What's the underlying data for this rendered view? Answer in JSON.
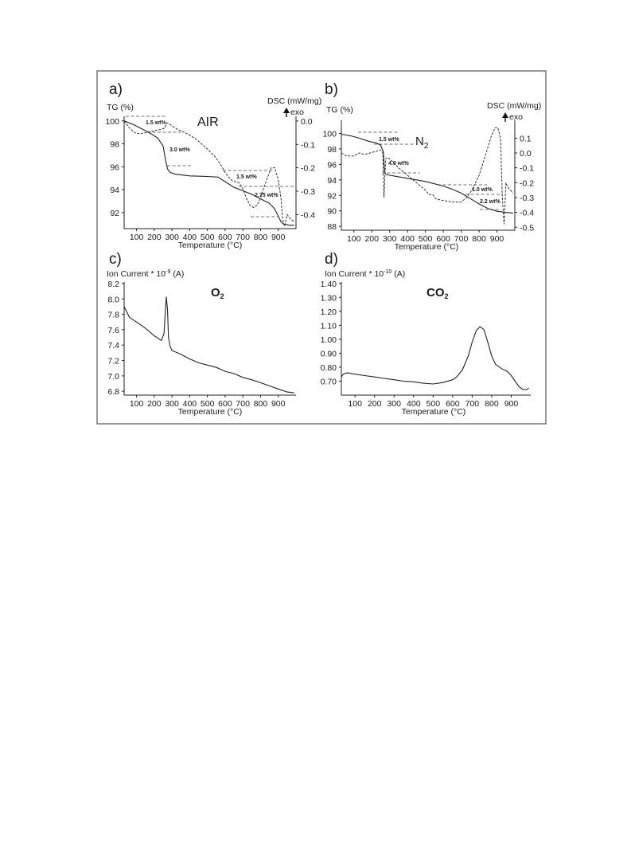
{
  "chart_data": [
    {
      "panel": "a)",
      "type": "line",
      "title": "AIR",
      "xlabel": "Temperature (°C)",
      "ylabel": "TG (%)",
      "y2label": "DSC (mW/mg)",
      "y2note": "exo",
      "xlim": [
        30,
        1000
      ],
      "ylim": [
        90.6,
        100.4
      ],
      "y2lim": [
        -0.46,
        0.02
      ],
      "x_ticks": [
        "100",
        "200",
        "300",
        "400",
        "500",
        "600",
        "700",
        "800",
        "900"
      ],
      "y_ticks": [
        "100",
        "98",
        "96",
        "94",
        "92"
      ],
      "y2_ticks": [
        "0.0",
        "-0.1",
        "-0.2",
        "-0.3",
        "-0.4"
      ],
      "annotations": [
        "1.5 wt%",
        "3.0 wt%",
        "1.5 wt%",
        "2.75 wt%"
      ],
      "series": [
        {
          "role": "TG",
          "style": "solid",
          "x": [
            30,
            80,
            130,
            180,
            220,
            250,
            265,
            275,
            290,
            320,
            400,
            500,
            560,
            600,
            650,
            700,
            750,
            800,
            850,
            880,
            900,
            915,
            930,
            960,
            990
          ],
          "y": [
            100.0,
            99.7,
            99.3,
            98.9,
            98.5,
            97.8,
            96.5,
            95.8,
            95.5,
            95.35,
            95.2,
            95.15,
            95.1,
            94.7,
            94.2,
            93.9,
            93.6,
            93.2,
            92.8,
            92.3,
            91.7,
            91.2,
            91.0,
            90.9,
            90.9
          ]
        },
        {
          "role": "DSC",
          "style": "dashed",
          "x": [
            30,
            60,
            90,
            120,
            150,
            180,
            210,
            240,
            260,
            270,
            280,
            300,
            330,
            360,
            400,
            440,
            470,
            500,
            540,
            570,
            600,
            620,
            640,
            660,
            680,
            700,
            720,
            740,
            760,
            780,
            800,
            820,
            840,
            860,
            880,
            900,
            915,
            925,
            935,
            950,
            970,
            990
          ],
          "y": [
            0.0,
            -0.03,
            -0.05,
            -0.055,
            -0.05,
            -0.045,
            -0.04,
            -0.035,
            -0.03,
            -0.01,
            -0.01,
            -0.02,
            -0.035,
            -0.045,
            -0.06,
            -0.08,
            -0.1,
            -0.12,
            -0.15,
            -0.18,
            -0.22,
            -0.24,
            -0.255,
            -0.26,
            -0.265,
            -0.29,
            -0.33,
            -0.36,
            -0.37,
            -0.36,
            -0.33,
            -0.28,
            -0.24,
            -0.2,
            -0.2,
            -0.25,
            -0.33,
            -0.42,
            -0.45,
            -0.4,
            -0.42,
            -0.43
          ]
        }
      ]
    },
    {
      "panel": "b)",
      "type": "line",
      "title": "N",
      "title_sub": "2",
      "xlabel": "Temperature (°C)",
      "ylabel": "TG (%)",
      "y2label": "DSC (mW/mg)",
      "y2note": "exo",
      "xlim": [
        30,
        1000
      ],
      "ylim": [
        87.5,
        101.7
      ],
      "y2lim": [
        -0.52,
        0.22
      ],
      "x_ticks": [
        "100",
        "200",
        "300",
        "400",
        "500",
        "600",
        "700",
        "800",
        "900"
      ],
      "y_ticks": [
        "100",
        "98",
        "96",
        "94",
        "92",
        "90",
        "88"
      ],
      "y2_ticks": [
        "0.1",
        "0.0",
        "-0.1",
        "-0.2",
        "-0.3",
        "-0.4",
        "-0.5"
      ],
      "annotations": [
        "1.5 wt%",
        "4.0 wt%",
        "1.0 wt%",
        "2.2 wt%"
      ],
      "series": [
        {
          "role": "TG",
          "style": "solid",
          "x": [
            30,
            80,
            130,
            180,
            220,
            250,
            265,
            272,
            280,
            300,
            350,
            400,
            450,
            500,
            550,
            600,
            650,
            700,
            750,
            800,
            850,
            900,
            950,
            990
          ],
          "y": [
            99.9,
            99.7,
            99.4,
            99.0,
            98.8,
            98.5,
            97.6,
            94.9,
            94.7,
            94.6,
            94.4,
            94.2,
            94.0,
            93.8,
            93.5,
            93.2,
            92.8,
            92.3,
            91.6,
            90.9,
            90.3,
            89.95,
            89.8,
            89.7
          ]
        },
        {
          "role": "DSC",
          "style": "dashed",
          "x": [
            30,
            60,
            100,
            130,
            160,
            190,
            220,
            250,
            262,
            268,
            272,
            278,
            290,
            310,
            350,
            400,
            450,
            500,
            520,
            540,
            560,
            600,
            650,
            700,
            730,
            760,
            800,
            840,
            870,
            890,
            905,
            920,
            930,
            940,
            945,
            950,
            960,
            975,
            990
          ],
          "y": [
            0.0,
            -0.02,
            -0.02,
            0.0,
            -0.01,
            0.0,
            0.01,
            0.02,
            0.0,
            -0.3,
            -0.2,
            -0.04,
            -0.03,
            -0.05,
            -0.1,
            -0.15,
            -0.2,
            -0.25,
            -0.28,
            -0.28,
            -0.31,
            -0.32,
            -0.33,
            -0.33,
            -0.3,
            -0.25,
            -0.15,
            0.0,
            0.12,
            0.17,
            0.17,
            0.1,
            -0.3,
            -0.48,
            -0.35,
            -0.2,
            -0.23,
            -0.25,
            -0.27
          ]
        }
      ]
    },
    {
      "panel": "c)",
      "type": "line",
      "title": "O",
      "title_sub": "2",
      "xlabel": "Temperature (°C)",
      "ylabel": "Ion Current * 10",
      "ylabel_sup": "-9",
      "ylabel_unit": "(A)",
      "xlim": [
        30,
        1000
      ],
      "ylim": [
        6.75,
        8.22
      ],
      "x_ticks": [
        "100",
        "200",
        "300",
        "400",
        "500",
        "600",
        "700",
        "800",
        "900"
      ],
      "y_ticks": [
        "8.2",
        "8.0",
        "7.8",
        "7.6",
        "7.4",
        "7.2",
        "7.0",
        "6.8"
      ],
      "series": [
        {
          "role": "O2",
          "style": "solid",
          "x": [
            30,
            60,
            100,
            150,
            200,
            240,
            255,
            262,
            268,
            275,
            280,
            290,
            300,
            350,
            400,
            450,
            500,
            550,
            600,
            650,
            700,
            750,
            800,
            850,
            900,
            950,
            990
          ],
          "y": [
            7.9,
            7.76,
            7.7,
            7.62,
            7.52,
            7.46,
            7.55,
            7.82,
            8.03,
            7.85,
            7.5,
            7.38,
            7.33,
            7.28,
            7.22,
            7.17,
            7.14,
            7.11,
            7.06,
            7.03,
            6.98,
            6.95,
            6.91,
            6.87,
            6.83,
            6.79,
            6.78
          ]
        }
      ]
    },
    {
      "panel": "d)",
      "type": "line",
      "title": "CO",
      "title_sub": "2",
      "xlabel": "Temperature (°C)",
      "ylabel": "Ion Current * 10",
      "ylabel_sup": "-10",
      "ylabel_unit": "(A)",
      "xlim": [
        30,
        1000
      ],
      "ylim": [
        0.6,
        1.41
      ],
      "x_ticks": [
        "100",
        "200",
        "300",
        "400",
        "500",
        "600",
        "700",
        "800",
        "900"
      ],
      "y_ticks": [
        "1.40",
        "1.30",
        "1.20",
        "1.10",
        "1.00",
        "0.90",
        "0.80",
        "0.70"
      ],
      "series": [
        {
          "role": "CO2",
          "style": "solid",
          "x": [
            30,
            40,
            60,
            100,
            150,
            200,
            250,
            300,
            350,
            400,
            450,
            500,
            550,
            600,
            620,
            650,
            680,
            700,
            720,
            740,
            760,
            780,
            800,
            820,
            850,
            880,
            900,
            920,
            940,
            960,
            980,
            990
          ],
          "y": [
            0.73,
            0.75,
            0.76,
            0.75,
            0.74,
            0.73,
            0.72,
            0.71,
            0.7,
            0.695,
            0.685,
            0.68,
            0.69,
            0.71,
            0.73,
            0.78,
            0.88,
            0.98,
            1.06,
            1.09,
            1.07,
            0.98,
            0.88,
            0.82,
            0.79,
            0.77,
            0.74,
            0.7,
            0.66,
            0.64,
            0.64,
            0.65
          ]
        }
      ]
    }
  ]
}
